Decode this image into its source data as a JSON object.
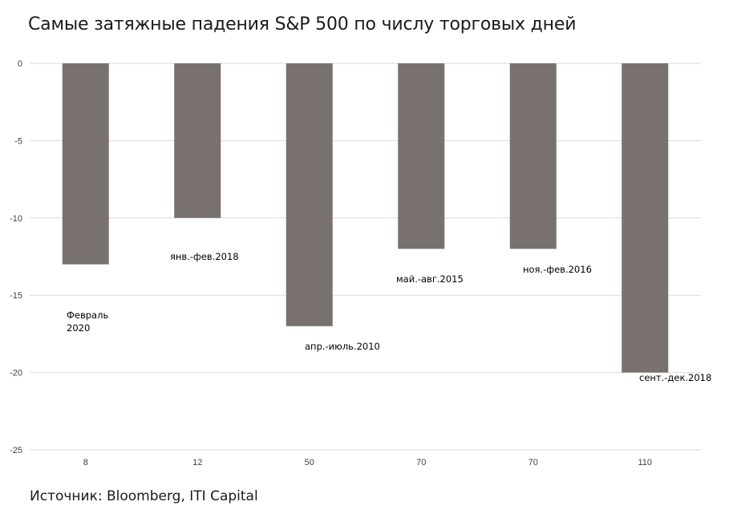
{
  "chart_data": {
    "type": "bar",
    "title": "Самые затяжные падения S&P 500 по числу торговых дней",
    "source": "Источник: Bloomberg, ITI Capital",
    "categories": [
      "8",
      "12",
      "50",
      "70",
      "70",
      "110"
    ],
    "bar_labels": [
      [
        "Февраль",
        "2020"
      ],
      [
        "янв.-фев.2018"
      ],
      [
        "апр.-июль.2010"
      ],
      [
        "май.-авг.2015"
      ],
      [
        "ноя.-фев.2016"
      ],
      [
        "сент.-дек.2018"
      ]
    ],
    "values": [
      -13,
      -10,
      -17,
      -12,
      -12,
      -20
    ],
    "ylim": [
      -25,
      0
    ],
    "yticks": [
      0,
      -5,
      -10,
      -15,
      -20,
      -25
    ],
    "grid": true,
    "bar_color": "#787170",
    "grid_color": "#d9d9d9"
  }
}
